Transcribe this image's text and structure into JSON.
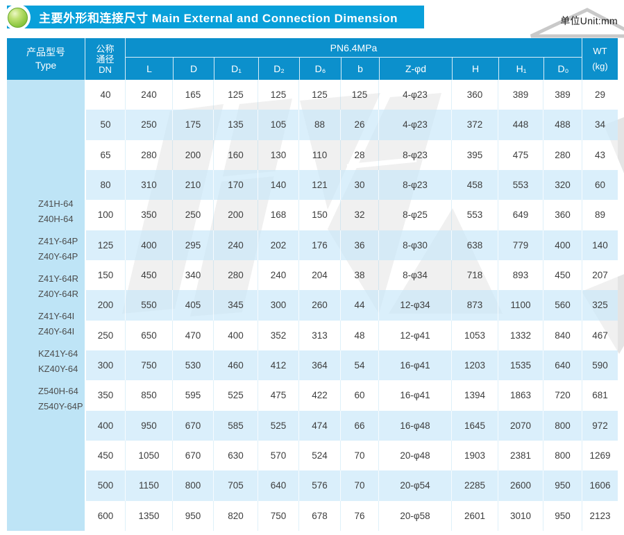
{
  "page": {
    "title": "主要外形和连接尺寸 Main External and Connection Dimension",
    "unit_label": "单位Unit:mm",
    "colors": {
      "title_bar": "#09A0DA",
      "table_header": "#0C90CC",
      "type_column": "#B8E2F5",
      "row_stripe": "#D8EEFA",
      "sphere_green": "#8CC63F",
      "watermark_gray": "#E4E4E4"
    },
    "icons": {
      "bullet": "green-sphere-icon"
    }
  },
  "table": {
    "header": {
      "type_label": "产品型号",
      "type_sub": "Type",
      "dn_line1": "公称",
      "dn_line2": "通径",
      "dn_line3": "DN",
      "pn_label": "PN6.4MPa",
      "columns": [
        "L",
        "D",
        "D₁",
        "D₂",
        "D₆",
        "b",
        "Z-φd",
        "H",
        "H₁",
        "D₀"
      ],
      "wt_label": "WT",
      "wt_unit": "(kg)"
    },
    "types": [
      [
        "Z41H-64",
        "Z40H-64"
      ],
      [
        "Z41Y-64P",
        "Z40Y-64P"
      ],
      [
        "Z41Y-64R",
        "Z40Y-64R"
      ],
      [
        "Z41Y-64I",
        "Z40Y-64I"
      ],
      [
        "KZ41Y-64",
        "KZ40Y-64"
      ],
      [
        "Z540H-64",
        "Z540Y-64P"
      ]
    ],
    "rows": [
      [
        "40",
        "240",
        "165",
        "125",
        "125",
        "125",
        "125",
        "4-φ23",
        "360",
        "389",
        "389",
        "29"
      ],
      [
        "50",
        "250",
        "175",
        "135",
        "105",
        "88",
        "26",
        "4-φ23",
        "372",
        "448",
        "488",
        "34"
      ],
      [
        "65",
        "280",
        "200",
        "160",
        "130",
        "110",
        "28",
        "8-φ23",
        "395",
        "475",
        "280",
        "43"
      ],
      [
        "80",
        "310",
        "210",
        "170",
        "140",
        "121",
        "30",
        "8-φ23",
        "458",
        "553",
        "320",
        "60"
      ],
      [
        "100",
        "350",
        "250",
        "200",
        "168",
        "150",
        "32",
        "8-φ25",
        "553",
        "649",
        "360",
        "89"
      ],
      [
        "125",
        "400",
        "295",
        "240",
        "202",
        "176",
        "36",
        "8-φ30",
        "638",
        "779",
        "400",
        "140"
      ],
      [
        "150",
        "450",
        "340",
        "280",
        "240",
        "204",
        "38",
        "8-φ34",
        "718",
        "893",
        "450",
        "207"
      ],
      [
        "200",
        "550",
        "405",
        "345",
        "300",
        "260",
        "44",
        "12-φ34",
        "873",
        "1100",
        "560",
        "325"
      ],
      [
        "250",
        "650",
        "470",
        "400",
        "352",
        "313",
        "48",
        "12-φ41",
        "1053",
        "1332",
        "840",
        "467"
      ],
      [
        "300",
        "750",
        "530",
        "460",
        "412",
        "364",
        "54",
        "16-φ41",
        "1203",
        "1535",
        "640",
        "590"
      ],
      [
        "350",
        "850",
        "595",
        "525",
        "475",
        "422",
        "60",
        "16-φ41",
        "1394",
        "1863",
        "720",
        "681"
      ],
      [
        "400",
        "950",
        "670",
        "585",
        "525",
        "474",
        "66",
        "16-φ48",
        "1645",
        "2070",
        "800",
        "972"
      ],
      [
        "450",
        "1050",
        "670",
        "630",
        "570",
        "524",
        "70",
        "20-φ48",
        "1903",
        "2381",
        "800",
        "1269"
      ],
      [
        "500",
        "1150",
        "800",
        "705",
        "640",
        "576",
        "70",
        "20-φ54",
        "2285",
        "2600",
        "950",
        "1606"
      ],
      [
        "600",
        "1350",
        "950",
        "820",
        "750",
        "678",
        "76",
        "20-φ58",
        "2601",
        "3010",
        "950",
        "2123"
      ]
    ]
  }
}
